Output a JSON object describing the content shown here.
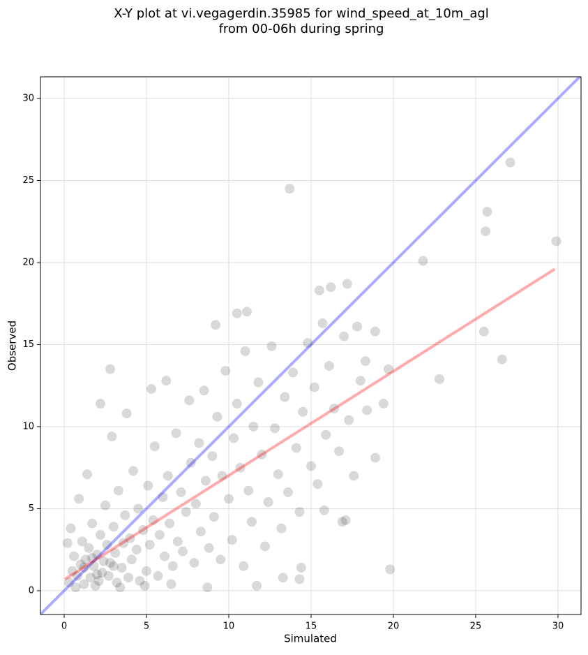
{
  "chart_data": {
    "type": "scatter",
    "title": [
      "X-Y plot at vi.vegagerdin.35985 for wind_speed_at_10m_agl",
      "from 00-06h during spring"
    ],
    "x_label": "Simulated",
    "y_label": "Observed",
    "color": "#000000",
    "x": [
      27.1,
      25.7,
      25.6,
      29.9,
      21.8,
      25.5,
      26.6,
      22.8,
      19.8,
      13.7,
      18.9,
      19.4,
      19.7,
      17.2,
      16.2,
      15.5,
      2.8,
      2.2,
      9.2,
      11.1,
      10.5,
      14.3,
      14.4,
      13.3,
      11.7,
      17.1,
      16.9,
      15.8,
      18.3,
      17.8,
      18.9,
      0.3,
      0.5,
      0.6,
      0.8,
      1.0,
      1.1,
      1.2,
      1.3,
      1.5,
      1.6,
      1.7,
      1.8,
      2.0,
      2.1,
      2.2,
      2.3,
      2.5,
      2.6,
      2.7,
      2.8,
      3.0,
      3.1,
      3.2,
      3.3,
      3.5,
      3.6,
      3.7,
      3.9,
      4.0,
      4.1,
      4.2,
      4.4,
      4.5,
      4.6,
      4.8,
      5.0,
      5.1,
      5.2,
      5.4,
      5.5,
      5.7,
      5.8,
      6.0,
      6.1,
      6.3,
      6.4,
      6.6,
      6.8,
      6.9,
      7.1,
      7.2,
      7.4,
      7.6,
      7.7,
      7.9,
      8.0,
      8.2,
      8.3,
      8.5,
      8.6,
      8.8,
      9.0,
      9.1,
      9.3,
      9.5,
      9.6,
      9.8,
      10.0,
      10.2,
      10.3,
      10.5,
      10.7,
      10.9,
      11.0,
      11.2,
      11.4,
      11.5,
      11.8,
      12.0,
      12.2,
      12.4,
      12.6,
      12.8,
      13.0,
      13.2,
      13.4,
      13.6,
      13.9,
      14.1,
      14.3,
      14.5,
      14.8,
      15.0,
      15.2,
      15.4,
      15.7,
      15.9,
      16.1,
      16.4,
      16.7,
      17.0,
      17.3,
      17.6,
      18.0,
      18.4,
      0.2,
      0.4,
      0.9,
      1.4,
      2.9,
      3.8,
      5.3,
      6.2,
      0.7,
      1.9,
      3.4,
      4.9,
      6.5,
      8.7,
      2.4,
      1.2,
      1.7,
      2.0,
      3.0
    ],
    "values": [
      26.1,
      23.1,
      21.9,
      21.3,
      20.1,
      15.8,
      14.1,
      12.9,
      1.3,
      24.5,
      8.1,
      11.4,
      13.5,
      18.7,
      18.5,
      18.3,
      13.5,
      11.4,
      16.2,
      17.0,
      16.9,
      0.7,
      1.4,
      0.8,
      0.3,
      4.3,
      4.2,
      4.9,
      14.0,
      16.1,
      15.8,
      0.5,
      1.2,
      2.1,
      0.9,
      1.6,
      3.0,
      0.4,
      1.9,
      2.6,
      0.8,
      4.1,
      1.5,
      2.2,
      0.6,
      3.4,
      1.1,
      5.2,
      2.8,
      0.9,
      1.7,
      3.9,
      2.3,
      0.5,
      6.1,
      1.4,
      2.9,
      4.6,
      0.8,
      3.2,
      1.9,
      7.3,
      2.5,
      5.0,
      0.6,
      3.7,
      1.2,
      6.4,
      2.8,
      4.3,
      8.8,
      0.9,
      3.4,
      5.7,
      2.1,
      7.0,
      4.1,
      1.5,
      9.6,
      3.0,
      6.0,
      2.4,
      4.8,
      11.6,
      7.8,
      1.7,
      5.3,
      9.0,
      3.6,
      12.2,
      6.7,
      2.6,
      8.2,
      4.5,
      10.6,
      1.9,
      7.0,
      13.4,
      5.6,
      3.1,
      9.3,
      11.4,
      7.5,
      1.5,
      14.6,
      6.1,
      4.2,
      10.0,
      12.7,
      8.3,
      2.7,
      5.4,
      14.9,
      9.9,
      7.1,
      3.8,
      11.8,
      6.0,
      13.3,
      8.7,
      4.8,
      10.9,
      15.1,
      7.6,
      12.4,
      6.5,
      16.3,
      9.5,
      13.7,
      11.1,
      8.5,
      15.5,
      10.4,
      7.0,
      12.8,
      11.0,
      2.9,
      3.8,
      5.6,
      7.1,
      9.4,
      10.8,
      12.3,
      12.8,
      0.2,
      0.3,
      0.2,
      0.3,
      0.4,
      0.2,
      1.8,
      1.4,
      2.0,
      1.0,
      1.5
    ],
    "lines": [
      {
        "color": "#0000ff",
        "x": [
          -1.44,
          31.4
        ],
        "values": [
          -1.44,
          31.4
        ]
      },
      {
        "color": "#ff0000",
        "x": [
          0.05,
          29.8
        ],
        "values": [
          0.7,
          19.6
        ]
      }
    ],
    "xlim": [
      -1.44,
      31.4
    ],
    "ylim": [
      -1.45,
      31.32
    ],
    "xticks": [
      0,
      5,
      10,
      15,
      20,
      25,
      30
    ],
    "yticks": [
      0,
      5,
      10,
      15,
      20,
      25,
      30
    ],
    "grid": true
  }
}
